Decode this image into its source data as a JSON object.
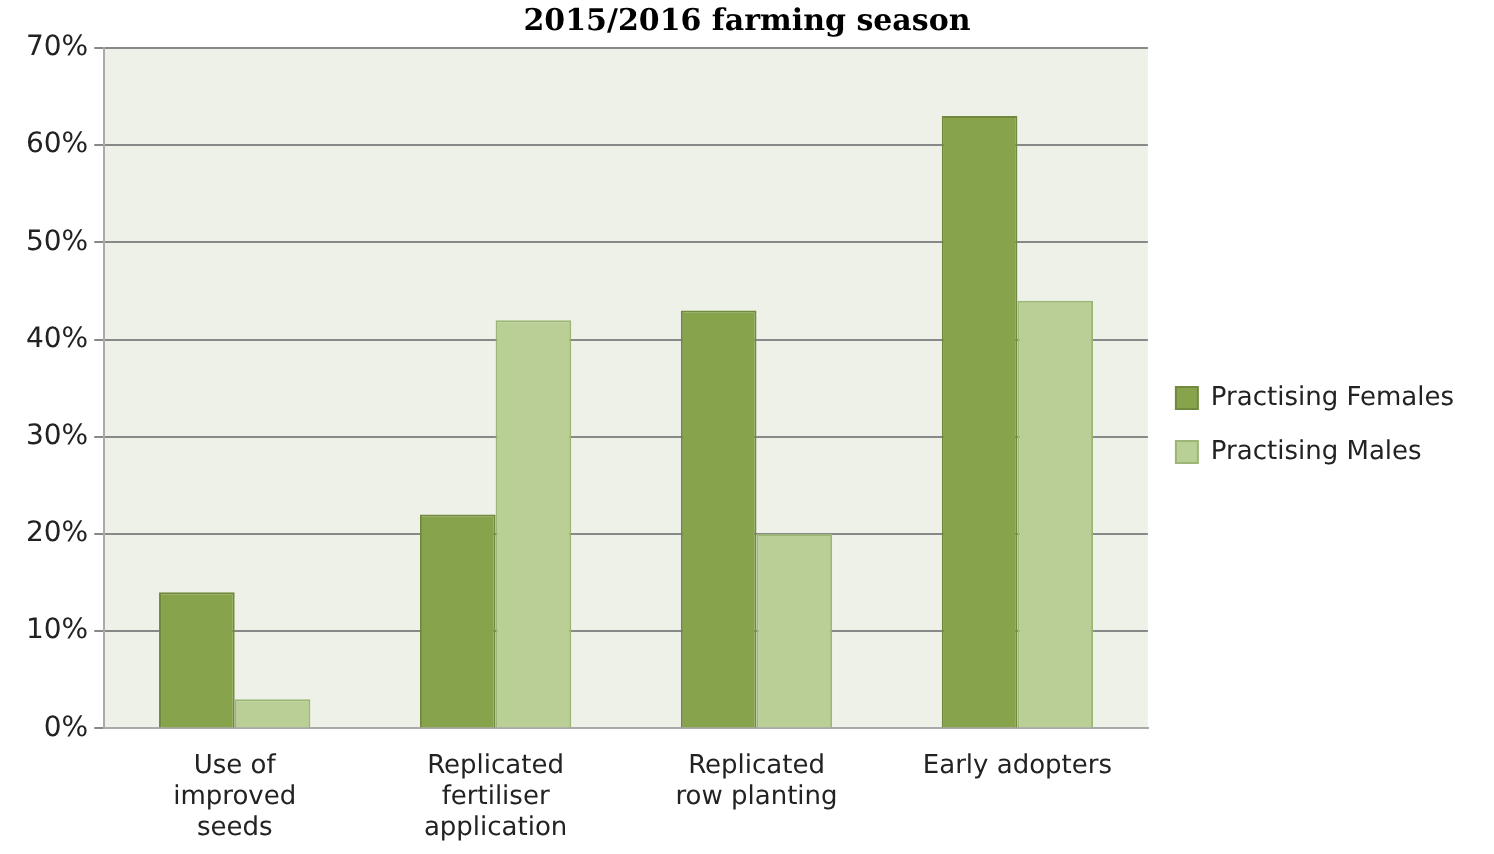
{
  "chart_data": {
    "type": "bar",
    "title": "2015/2016 farming season",
    "categories": [
      "Use of improved seeds",
      "Replicated fertiliser application",
      "Replicated row planting",
      "Early adopters"
    ],
    "series": [
      {
        "name": "Practising Females",
        "color": "#87a44c",
        "values": [
          14,
          22,
          43,
          63
        ]
      },
      {
        "name": "Practising Males",
        "color": "#b9cf95",
        "values": [
          3,
          42,
          20,
          44
        ]
      }
    ],
    "ylim": [
      0,
      70
    ],
    "yticks": [
      {
        "value": 0,
        "label": "0%"
      },
      {
        "value": 10,
        "label": "10%"
      },
      {
        "value": 20,
        "label": "20%"
      },
      {
        "value": 30,
        "label": "30%"
      },
      {
        "value": 40,
        "label": "40%"
      },
      {
        "value": 50,
        "label": "50%"
      },
      {
        "value": 60,
        "label": "60%"
      },
      {
        "value": 70,
        "label": "70%"
      }
    ],
    "grid": "y",
    "legend": "right"
  }
}
